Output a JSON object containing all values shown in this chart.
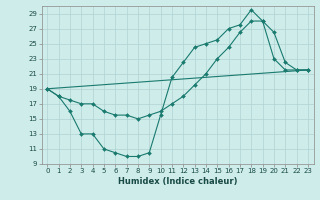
{
  "xlabel": "Humidex (Indice chaleur)",
  "bg_color": "#ceecea",
  "grid_color": "#aacccc",
  "line_color": "#1a7a6e",
  "xlim": [
    -0.5,
    23.5
  ],
  "ylim": [
    9,
    30
  ],
  "xticks": [
    0,
    1,
    2,
    3,
    4,
    5,
    6,
    7,
    8,
    9,
    10,
    11,
    12,
    13,
    14,
    15,
    16,
    17,
    18,
    19,
    20,
    21,
    22,
    23
  ],
  "yticks": [
    9,
    11,
    13,
    15,
    17,
    19,
    21,
    23,
    25,
    27,
    29
  ],
  "line1_x": [
    0,
    1,
    2,
    3,
    4,
    5,
    6,
    7,
    8,
    9,
    10,
    11,
    12,
    13,
    14,
    15,
    16,
    17,
    18,
    19,
    20,
    21,
    22,
    23
  ],
  "line1_y": [
    19,
    18,
    16,
    13,
    13,
    11,
    10.5,
    10,
    10,
    10.5,
    15.5,
    20.5,
    22.5,
    24.5,
    25,
    25.5,
    27,
    27.5,
    29.5,
    28,
    23,
    21.5,
    21.5,
    21.5
  ],
  "line2_x": [
    0,
    1,
    2,
    3,
    4,
    5,
    6,
    7,
    8,
    9,
    10,
    11,
    12,
    13,
    14,
    15,
    16,
    17,
    18,
    19,
    20,
    21,
    22,
    23
  ],
  "line2_y": [
    19,
    18,
    17.5,
    17,
    17,
    16,
    15.5,
    15.5,
    15,
    15.5,
    16,
    17,
    18,
    19.5,
    21,
    23,
    24.5,
    26.5,
    28,
    28,
    26.5,
    22.5,
    21.5,
    21.5
  ],
  "line3_x": [
    0,
    23
  ],
  "line3_y": [
    19,
    21.5
  ],
  "xlabel_fontsize": 6,
  "tick_fontsize": 5
}
